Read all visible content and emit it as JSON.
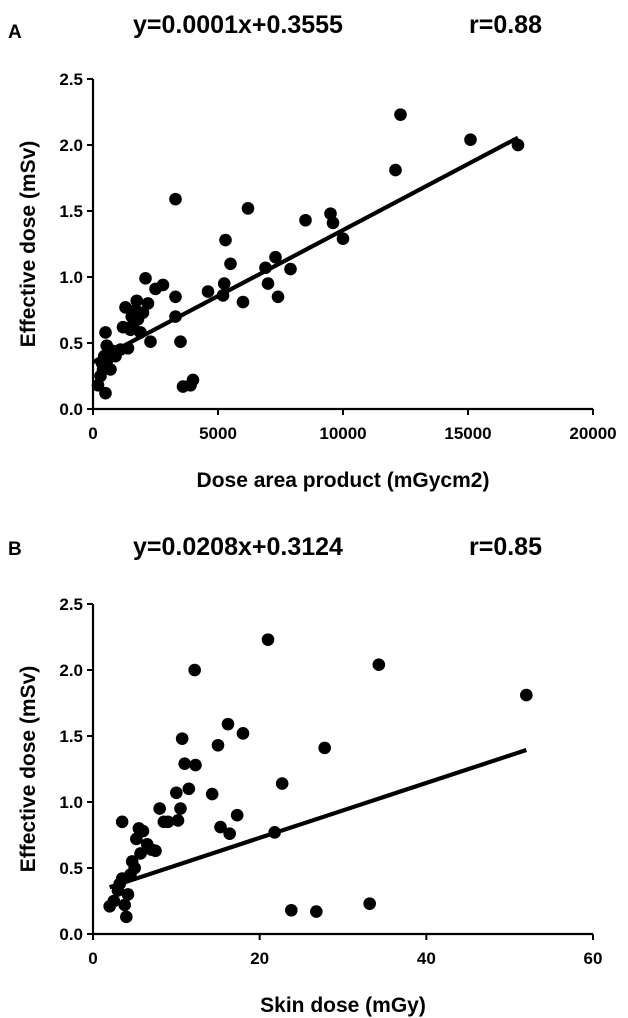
{
  "chart_data": [
    {
      "panel_label": "A",
      "type": "scatter",
      "title": "y=0.0001x+0.3555",
      "stat": "r=0.88",
      "xlabel": "Dose area product (mGycm2)",
      "ylabel": "Effective dose (mSv)",
      "xlim": [
        0,
        20000
      ],
      "ylim": [
        0,
        2.5
      ],
      "xticks": [
        "0",
        "5000",
        "10000",
        "15000",
        "20000"
      ],
      "yticks": [
        "0.0",
        "0.5",
        "1.0",
        "1.5",
        "2.0",
        "2.5"
      ],
      "grid": false,
      "regression": {
        "slope": 0.0001,
        "intercept": 0.3555,
        "x_range": [
          0,
          17000
        ]
      },
      "points": [
        [
          200,
          0.18
        ],
        [
          300,
          0.25
        ],
        [
          400,
          0.3
        ],
        [
          350,
          0.35
        ],
        [
          450,
          0.4
        ],
        [
          500,
          0.58
        ],
        [
          550,
          0.48
        ],
        [
          600,
          0.38
        ],
        [
          500,
          0.12
        ],
        [
          700,
          0.3
        ],
        [
          800,
          0.44
        ],
        [
          900,
          0.4
        ],
        [
          1100,
          0.45
        ],
        [
          1200,
          0.62
        ],
        [
          1300,
          0.77
        ],
        [
          1400,
          0.46
        ],
        [
          1500,
          0.6
        ],
        [
          1550,
          0.7
        ],
        [
          1600,
          0.64
        ],
        [
          1700,
          0.75
        ],
        [
          1750,
          0.82
        ],
        [
          1800,
          0.68
        ],
        [
          1900,
          0.58
        ],
        [
          2000,
          0.73
        ],
        [
          2100,
          0.99
        ],
        [
          2200,
          0.8
        ],
        [
          2300,
          0.51
        ],
        [
          2500,
          0.91
        ],
        [
          2800,
          0.94
        ],
        [
          3300,
          0.85
        ],
        [
          3300,
          0.7
        ],
        [
          3300,
          1.59
        ],
        [
          3500,
          0.51
        ],
        [
          3600,
          0.17
        ],
        [
          3900,
          0.18
        ],
        [
          4000,
          0.22
        ],
        [
          4600,
          0.89
        ],
        [
          5200,
          0.86
        ],
        [
          5250,
          0.95
        ],
        [
          5300,
          1.28
        ],
        [
          5500,
          1.1
        ],
        [
          6000,
          0.81
        ],
        [
          6200,
          1.52
        ],
        [
          6900,
          1.07
        ],
        [
          7000,
          0.95
        ],
        [
          7300,
          1.15
        ],
        [
          7400,
          0.85
        ],
        [
          7900,
          1.06
        ],
        [
          8500,
          1.43
        ],
        [
          9500,
          1.48
        ],
        [
          9600,
          1.41
        ],
        [
          10000,
          1.29
        ],
        [
          12100,
          1.81
        ],
        [
          12300,
          2.23
        ],
        [
          15100,
          2.04
        ],
        [
          17000,
          2.0
        ]
      ]
    },
    {
      "panel_label": "B",
      "type": "scatter",
      "title": "y=0.0208x+0.3124",
      "stat": "r=0.85",
      "xlabel": "Skin dose (mGy)",
      "ylabel": "Effective dose (mSv)",
      "xlim": [
        0,
        60
      ],
      "ylim": [
        0,
        2.5
      ],
      "xticks": [
        "0",
        "20",
        "40",
        "60"
      ],
      "yticks": [
        "0.0",
        "0.5",
        "1.0",
        "1.5",
        "2.0",
        "2.5"
      ],
      "grid": false,
      "regression": {
        "slope": 0.0208,
        "intercept": 0.3124,
        "x_range": [
          2,
          52
        ]
      },
      "points": [
        [
          2.0,
          0.21
        ],
        [
          2.5,
          0.25
        ],
        [
          3.0,
          0.33
        ],
        [
          3.2,
          0.38
        ],
        [
          3.5,
          0.42
        ],
        [
          3.8,
          0.22
        ],
        [
          4.0,
          0.13
        ],
        [
          4.2,
          0.3
        ],
        [
          4.5,
          0.45
        ],
        [
          4.7,
          0.55
        ],
        [
          5.0,
          0.5
        ],
        [
          5.2,
          0.72
        ],
        [
          5.5,
          0.8
        ],
        [
          5.7,
          0.61
        ],
        [
          6.0,
          0.78
        ],
        [
          6.5,
          0.68
        ],
        [
          7.0,
          0.64
        ],
        [
          7.5,
          0.63
        ],
        [
          8.0,
          0.95
        ],
        [
          8.5,
          0.85
        ],
        [
          3.5,
          0.85
        ],
        [
          9.0,
          0.85
        ],
        [
          10.0,
          1.07
        ],
        [
          10.2,
          0.86
        ],
        [
          10.5,
          0.95
        ],
        [
          10.7,
          1.48
        ],
        [
          11.0,
          1.29
        ],
        [
          11.5,
          1.1
        ],
        [
          12.2,
          2.0
        ],
        [
          12.3,
          1.28
        ],
        [
          14.3,
          1.06
        ],
        [
          15.0,
          1.43
        ],
        [
          15.3,
          0.81
        ],
        [
          16.2,
          1.59
        ],
        [
          16.4,
          0.76
        ],
        [
          17.3,
          0.9
        ],
        [
          18.0,
          1.52
        ],
        [
          21.0,
          2.23
        ],
        [
          21.8,
          0.77
        ],
        [
          22.7,
          1.14
        ],
        [
          23.8,
          0.18
        ],
        [
          26.8,
          0.17
        ],
        [
          27.8,
          1.41
        ],
        [
          33.2,
          0.23
        ],
        [
          34.3,
          2.04
        ],
        [
          52.0,
          1.81
        ]
      ]
    }
  ]
}
